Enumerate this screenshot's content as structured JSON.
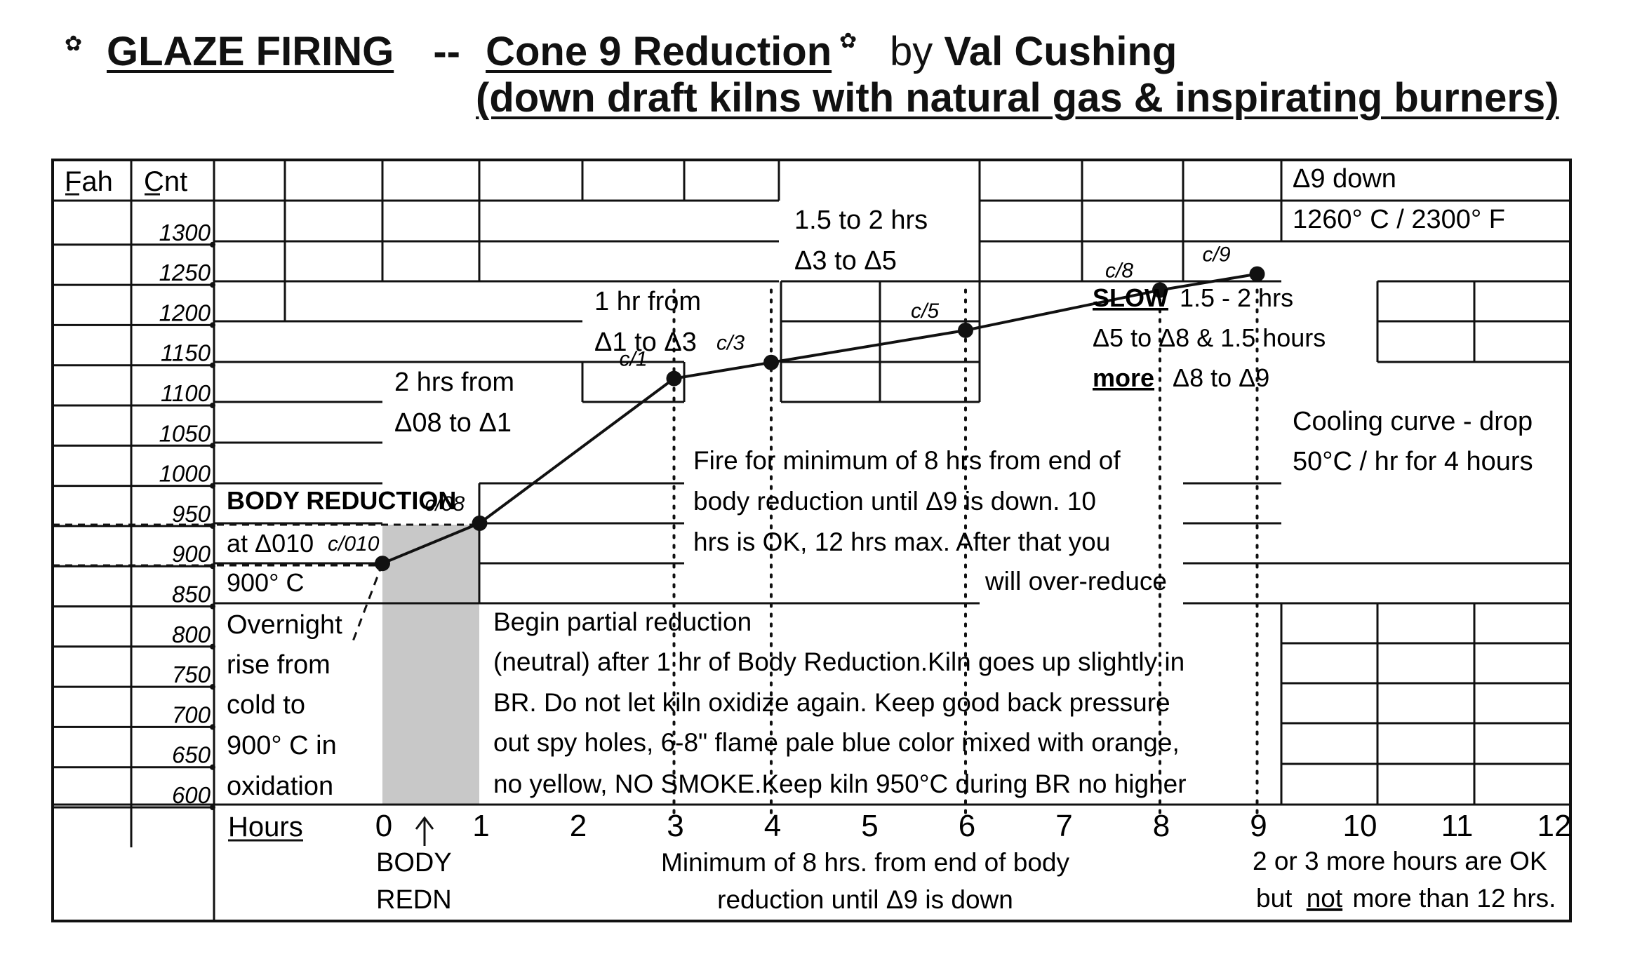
{
  "title": {
    "star_glyph": "✿",
    "part1": "GLAZE FIRING",
    "sep": "--",
    "part2": "Cone 9 Reduction",
    "by": "by",
    "author": "Val Cushing",
    "line2": "(down draft kilns with natural gas & inspirating burners)"
  },
  "table_headers": {
    "fah": "Fah",
    "cnt": "Cnt",
    "hours": "Hours"
  },
  "chart_data": {
    "type": "line",
    "title": "GLAZE FIRING -- Cone 9 Reduction by Val Cushing",
    "xlabel": "Hours",
    "ylabel": "Cnt",
    "xlim": [
      0,
      12
    ],
    "ylim": [
      600,
      1300
    ],
    "x_ticks": [
      "0",
      "1",
      "2",
      "3",
      "4",
      "5",
      "6",
      "7",
      "8",
      "9",
      "10",
      "11",
      "12"
    ],
    "y_ticks": [
      "1300",
      "1250",
      "1200",
      "1150",
      "1100",
      "1050",
      "1000",
      "950",
      "900",
      "850",
      "800",
      "750",
      "700",
      "650",
      "600"
    ],
    "series": [
      {
        "values": [
          {
            "x": 0,
            "y": 900,
            "label": "c/010"
          },
          {
            "x": 1,
            "y": 950,
            "label": "c/08"
          },
          {
            "x": 3,
            "y": 1130,
            "label": "c/1"
          },
          {
            "x": 4,
            "y": 1150,
            "label": "c/3"
          },
          {
            "x": 6,
            "y": 1190,
            "label": "c/5"
          },
          {
            "x": 8,
            "y": 1240,
            "label": "c/8"
          },
          {
            "x": 9,
            "y": 1260,
            "label": "c/9"
          }
        ]
      }
    ],
    "overnight_rise": [
      {
        "x": 0,
        "y": 900
      },
      {
        "x": -1.6,
        "y": 765
      }
    ],
    "body_reduction_shaded": [
      0,
      1
    ],
    "dotted_markers_x": [
      3,
      4,
      6,
      8,
      9
    ]
  },
  "annotations": {
    "body_reduction": [
      "BODY REDUCTION",
      "at  Δ010",
      "900° C"
    ],
    "overnight": [
      "Overnight",
      "rise from",
      "cold to",
      "900° C in",
      "oxidation"
    ],
    "two_hrs": [
      "2 hrs from",
      "Δ08 to Δ1"
    ],
    "one_hr": [
      "1 hr  from",
      "Δ1 to Δ3"
    ],
    "one_five": [
      "1.5 to 2 hrs",
      "Δ3 to Δ5"
    ],
    "delta9": [
      "Δ9 down",
      "1260° C / 2300° F"
    ],
    "slow_word": "SLOW",
    "slow_rest": "1.5 - 2 hrs",
    "slow_line2": "Δ5 to Δ8 & 1.5 hours",
    "more_word": "more",
    "more_rest": "Δ8 to Δ9",
    "cooling": [
      "Cooling curve - drop",
      "50°C / hr for 4 hours"
    ],
    "fire_min": [
      "Fire for minimum of 8 hrs from end of",
      "body reduction until Δ9 is down.  10",
      "hrs is OK, 12 hrs max.  After that you",
      "will over-reduce"
    ],
    "partial": [
      "Begin partial reduction",
      "(neutral) after 1 hr of Body Reduction.Kiln goes up slightly in",
      "BR. Do not let kiln oxidize again.  Keep good  back  pressure",
      "out spy holes, 6-8\" flame pale blue color mixed with orange,",
      "no yellow, NO SMOKE.Keep kiln 950°C during BR no higher"
    ],
    "body_redn": [
      "BODY",
      "REDN"
    ],
    "min8": [
      "Minimum of 8 hrs. from end of body",
      "reduction until Δ9 is down"
    ],
    "more_hours": "2 or 3 more hours are OK",
    "but": "but",
    "not_word": "not",
    "more_than": "more than 12 hrs."
  }
}
